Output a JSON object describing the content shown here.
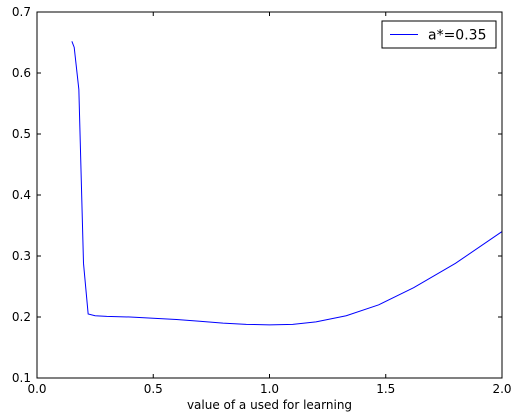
{
  "chart_data": {
    "type": "line",
    "title": "",
    "xlabel": "value of a used for learning",
    "ylabel": "",
    "xlim": [
      0.0,
      2.0
    ],
    "ylim": [
      0.1,
      0.7
    ],
    "xticks": [
      "0.0",
      "0.5",
      "1.0",
      "1.5",
      "2.0"
    ],
    "yticks": [
      "0.1",
      "0.2",
      "0.3",
      "0.4",
      "0.5",
      "0.6",
      "0.7"
    ],
    "grid": false,
    "legend_position": "top-right",
    "series": [
      {
        "name": "a*=0.35",
        "color": "#0000ff",
        "x": [
          0.15,
          0.16,
          0.18,
          0.2,
          0.22,
          0.25,
          0.3,
          0.4,
          0.5,
          0.6,
          0.7,
          0.8,
          0.9,
          1.0,
          1.1,
          1.2,
          1.33,
          1.47,
          1.62,
          1.8,
          2.0
        ],
        "y": [
          0.652,
          0.642,
          0.573,
          0.288,
          0.205,
          0.202,
          0.201,
          0.2,
          0.198,
          0.196,
          0.193,
          0.19,
          0.188,
          0.187,
          0.188,
          0.192,
          0.202,
          0.22,
          0.248,
          0.288,
          0.34
        ]
      }
    ]
  }
}
